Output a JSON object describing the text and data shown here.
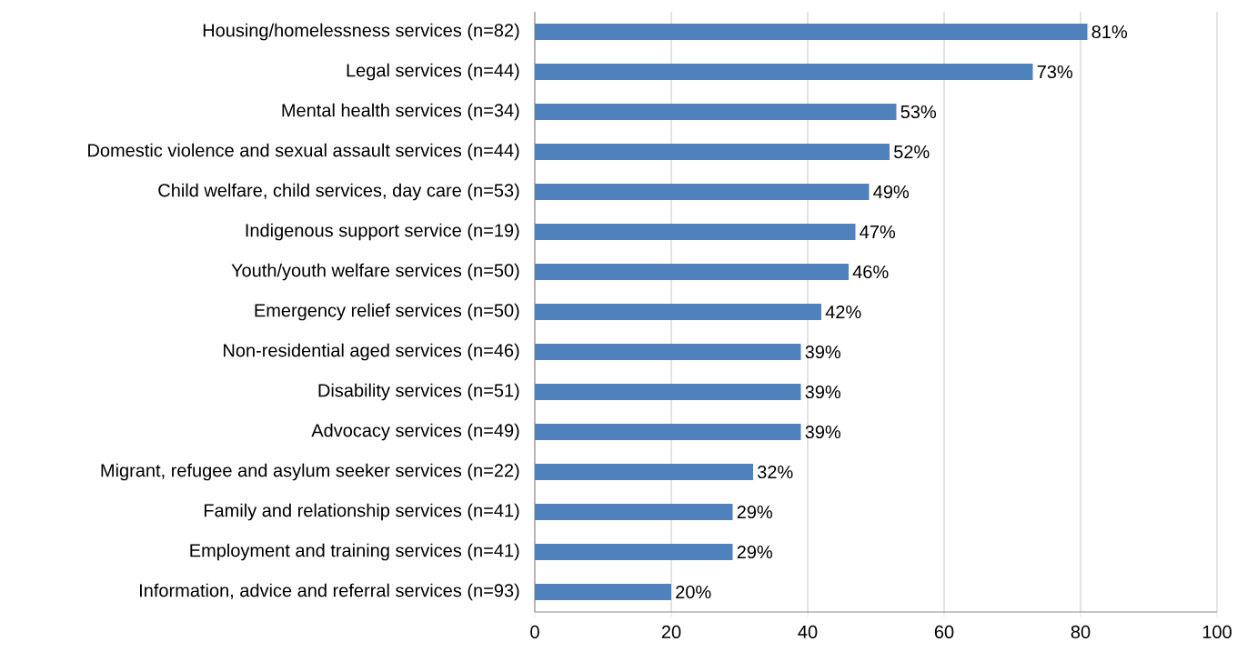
{
  "chart_data": {
    "type": "bar",
    "orientation": "horizontal",
    "categories": [
      "Housing/homelessness services (n=82)",
      "Legal services (n=44)",
      "Mental health services (n=34)",
      "Domestic violence and sexual assault services (n=44)",
      "Child welfare, child services, day care (n=53)",
      "Indigenous support service (n=19)",
      "Youth/youth welfare services (n=50)",
      "Emergency relief services (n=50)",
      "Non-residential aged services (n=46)",
      "Disability services (n=51)",
      "Advocacy services (n=49)",
      "Migrant, refugee and asylum seeker services (n=22)",
      "Family and relationship services (n=41)",
      "Employment and training services (n=41)",
      "Information, advice and referral services (n=93)"
    ],
    "values": [
      81,
      73,
      53,
      52,
      49,
      47,
      46,
      42,
      39,
      39,
      39,
      32,
      29,
      29,
      20
    ],
    "value_labels": [
      "81%",
      "73%",
      "53%",
      "52%",
      "49%",
      "47%",
      "46%",
      "42%",
      "39%",
      "39%",
      "39%",
      "32%",
      "29%",
      "29%",
      "20%"
    ],
    "color": "#4f81bd",
    "xlim": [
      0,
      100
    ],
    "xticks": [
      0,
      20,
      40,
      60,
      80,
      100
    ],
    "grid": "x"
  }
}
